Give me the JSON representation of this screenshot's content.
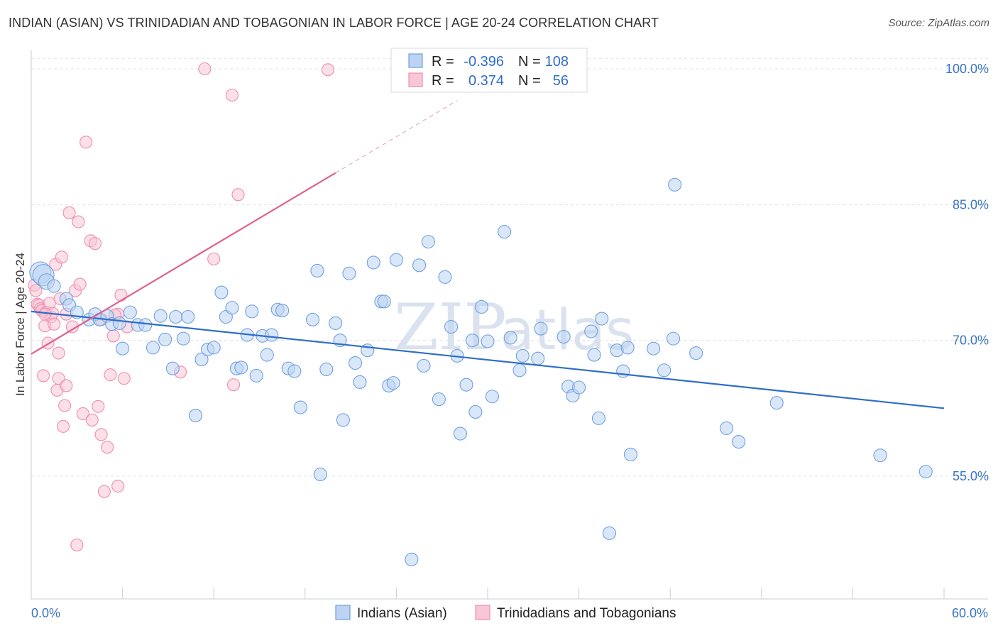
{
  "title": "INDIAN (ASIAN) VS TRINIDADIAN AND TOBAGONIAN IN LABOR FORCE | AGE 20-24 CORRELATION CHART",
  "source": "Source: ZipAtlas.com",
  "watermark": {
    "zip": "ZIP",
    "atlas": "atlas"
  },
  "colors": {
    "blue": "#6fa0e0",
    "blue_line": "#2f6ec9",
    "pink": "#f08cb0",
    "pink_line": "#e0608c",
    "grid": "#dde3ea"
  },
  "legend": {
    "r_label": "R =",
    "n_label": "N =",
    "rows": [
      {
        "r": "-0.396",
        "n": "108"
      },
      {
        "r": "0.374",
        "n": "56"
      }
    ]
  },
  "chart_data": {
    "type": "scatter",
    "title": "INDIAN (ASIAN) VS TRINIDADIAN AND TOBAGONIAN IN LABOR FORCE | AGE 20-24 CORRELATION CHART",
    "xlabel": "",
    "ylabel": "In Labor Force | Age 20-24",
    "xlim": [
      0,
      60
    ],
    "ylim": [
      40,
      101
    ],
    "x_tick_labels": [
      "0.0%",
      "60.0%"
    ],
    "y_ticks": [
      55,
      70,
      85,
      100
    ],
    "y_tick_labels": [
      "55.0%",
      "70.0%",
      "85.0%",
      "100.0%"
    ],
    "grid": true,
    "legend_position": "top-center",
    "series": [
      {
        "name": "Indians (Asian)",
        "trend": {
          "x": [
            0,
            60
          ],
          "y": [
            73.2,
            62.5
          ]
        },
        "points": [
          [
            0.6,
            77.5
          ],
          [
            0.8,
            77.2
          ],
          [
            1.0,
            76.5
          ],
          [
            1.5,
            76.0
          ],
          [
            2.3,
            74.6
          ],
          [
            2.5,
            73.9
          ],
          [
            3.0,
            73.1
          ],
          [
            3.8,
            72.3
          ],
          [
            4.2,
            72.9
          ],
          [
            4.5,
            72.3
          ],
          [
            5.0,
            72.7
          ],
          [
            5.3,
            71.8
          ],
          [
            5.8,
            71.9
          ],
          [
            6.0,
            69.1
          ],
          [
            6.5,
            73.1
          ],
          [
            7.0,
            71.7
          ],
          [
            7.5,
            71.7
          ],
          [
            8.0,
            69.2
          ],
          [
            8.5,
            72.7
          ],
          [
            8.8,
            70.1
          ],
          [
            9.3,
            66.9
          ],
          [
            9.5,
            72.6
          ],
          [
            10.0,
            70.2
          ],
          [
            10.3,
            72.6
          ],
          [
            10.8,
            61.7
          ],
          [
            11.2,
            67.9
          ],
          [
            11.6,
            69.0
          ],
          [
            12.0,
            69.2
          ],
          [
            12.5,
            75.3
          ],
          [
            12.8,
            72.6
          ],
          [
            13.2,
            73.6
          ],
          [
            13.5,
            66.9
          ],
          [
            13.8,
            67.0
          ],
          [
            14.2,
            70.6
          ],
          [
            14.5,
            73.2
          ],
          [
            14.8,
            66.1
          ],
          [
            15.2,
            70.5
          ],
          [
            15.5,
            68.4
          ],
          [
            15.8,
            70.6
          ],
          [
            16.2,
            73.4
          ],
          [
            16.5,
            73.3
          ],
          [
            16.9,
            66.9
          ],
          [
            17.3,
            66.6
          ],
          [
            17.7,
            62.6
          ],
          [
            18.5,
            72.3
          ],
          [
            18.8,
            77.7
          ],
          [
            19.0,
            55.2
          ],
          [
            19.4,
            66.8
          ],
          [
            20.0,
            71.9
          ],
          [
            20.3,
            70.0
          ],
          [
            20.5,
            61.2
          ],
          [
            20.9,
            77.4
          ],
          [
            21.3,
            67.5
          ],
          [
            21.6,
            65.4
          ],
          [
            22.1,
            68.9
          ],
          [
            22.5,
            78.6
          ],
          [
            23.0,
            74.3
          ],
          [
            23.2,
            74.3
          ],
          [
            23.5,
            65.0
          ],
          [
            23.8,
            65.3
          ],
          [
            24.0,
            78.9
          ],
          [
            25.0,
            45.8
          ],
          [
            25.5,
            78.3
          ],
          [
            25.8,
            67.2
          ],
          [
            26.1,
            80.9
          ],
          [
            26.8,
            63.5
          ],
          [
            27.2,
            77.0
          ],
          [
            27.6,
            71.5
          ],
          [
            28.0,
            68.3
          ],
          [
            28.2,
            59.7
          ],
          [
            28.6,
            65.1
          ],
          [
            29.0,
            70.0
          ],
          [
            29.2,
            62.1
          ],
          [
            29.6,
            73.7
          ],
          [
            30.0,
            69.9
          ],
          [
            30.3,
            63.8
          ],
          [
            31.1,
            82.0
          ],
          [
            31.5,
            70.3
          ],
          [
            32.1,
            66.7
          ],
          [
            32.3,
            68.3
          ],
          [
            33.3,
            68.0
          ],
          [
            33.5,
            71.3
          ],
          [
            35.0,
            70.4
          ],
          [
            35.3,
            64.9
          ],
          [
            35.6,
            63.9
          ],
          [
            36.0,
            64.8
          ],
          [
            36.8,
            71.0
          ],
          [
            37.0,
            68.4
          ],
          [
            37.3,
            61.4
          ],
          [
            37.5,
            72.4
          ],
          [
            38.0,
            48.7
          ],
          [
            38.5,
            68.9
          ],
          [
            38.9,
            66.6
          ],
          [
            39.2,
            69.2
          ],
          [
            39.4,
            57.4
          ],
          [
            40.9,
            69.1
          ],
          [
            41.6,
            66.7
          ],
          [
            42.2,
            70.2
          ],
          [
            42.3,
            87.2
          ],
          [
            43.7,
            68.6
          ],
          [
            45.7,
            60.3
          ],
          [
            46.5,
            58.8
          ],
          [
            49.0,
            63.1
          ],
          [
            55.8,
            57.3
          ],
          [
            58.8,
            55.5
          ]
        ]
      },
      {
        "name": "Trinidadians and Tobagonians",
        "trend": {
          "x": [
            0,
            20
          ],
          "y": [
            68.5,
            88.5
          ]
        },
        "points": [
          [
            0.2,
            76.1
          ],
          [
            0.3,
            75.5
          ],
          [
            0.4,
            74.0
          ],
          [
            0.5,
            73.9
          ],
          [
            0.6,
            73.5
          ],
          [
            0.7,
            73.3
          ],
          [
            0.8,
            66.1
          ],
          [
            0.9,
            71.6
          ],
          [
            1.0,
            73.1
          ],
          [
            1.1,
            69.7
          ],
          [
            1.2,
            74.1
          ],
          [
            1.3,
            72.6
          ],
          [
            1.4,
            73.0
          ],
          [
            1.6,
            78.4
          ],
          [
            1.7,
            64.5
          ],
          [
            1.8,
            65.8
          ],
          [
            1.8,
            68.6
          ],
          [
            1.9,
            74.6
          ],
          [
            2.0,
            79.2
          ],
          [
            2.1,
            60.5
          ],
          [
            2.2,
            62.8
          ],
          [
            2.3,
            65.0
          ],
          [
            2.5,
            84.1
          ],
          [
            2.7,
            71.5
          ],
          [
            2.9,
            75.5
          ],
          [
            3.0,
            47.4
          ],
          [
            3.1,
            83.1
          ],
          [
            3.2,
            76.2
          ],
          [
            3.4,
            61.9
          ],
          [
            3.6,
            91.9
          ],
          [
            3.9,
            81.0
          ],
          [
            4.0,
            61.2
          ],
          [
            4.2,
            80.7
          ],
          [
            4.4,
            62.7
          ],
          [
            4.6,
            59.6
          ],
          [
            4.8,
            53.3
          ],
          [
            5.0,
            58.2
          ],
          [
            5.2,
            66.2
          ],
          [
            5.4,
            70.5
          ],
          [
            5.7,
            53.9
          ],
          [
            5.7,
            72.9
          ],
          [
            5.9,
            75.0
          ],
          [
            6.1,
            65.8
          ],
          [
            9.8,
            66.5
          ],
          [
            11.4,
            100.0
          ],
          [
            12.0,
            79.0
          ],
          [
            13.2,
            97.1
          ],
          [
            13.3,
            65.1
          ],
          [
            13.6,
            86.1
          ],
          [
            19.5,
            99.9
          ],
          [
            4.6,
            72.3
          ],
          [
            5.5,
            72.8
          ],
          [
            6.3,
            71.5
          ],
          [
            1.5,
            71.8
          ],
          [
            2.3,
            72.9
          ],
          [
            0.9,
            72.9
          ]
        ]
      }
    ]
  }
}
